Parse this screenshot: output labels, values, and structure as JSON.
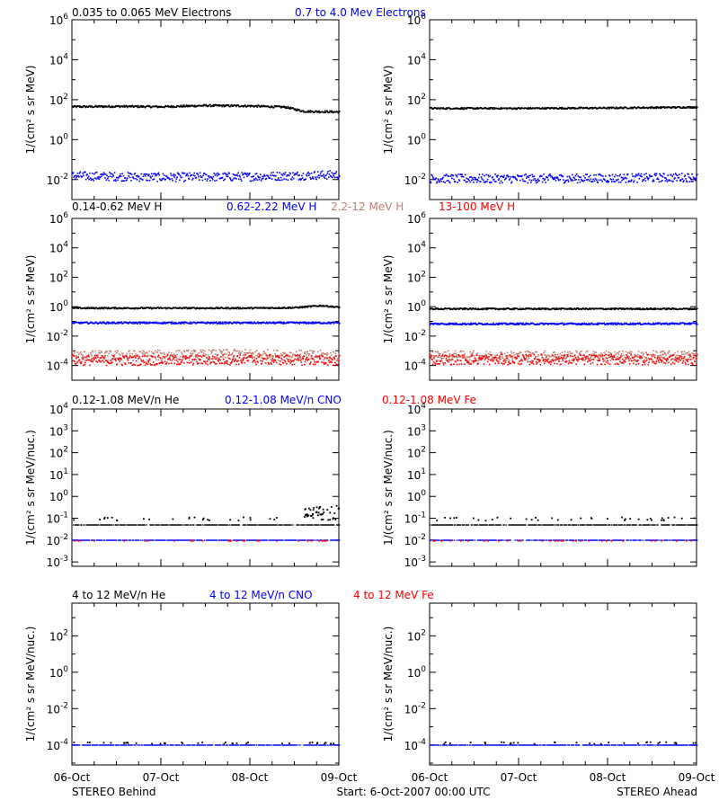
{
  "colors": {
    "black": "#000000",
    "blue": "#0000ff",
    "tan": "#c08070",
    "red": "#ff0000"
  },
  "footer": {
    "left": "STEREO Behind",
    "center": "Start:  6-Oct-2007 00:00 UTC",
    "right": "STEREO Ahead"
  },
  "x_ticks": [
    "06-Oct",
    "07-Oct",
    "08-Oct",
    "09-Oct"
  ],
  "chart_data": [
    {
      "type": "scatter",
      "row": "electrons",
      "ylabel": "1/(cm² s sr MeV)",
      "ylog10_range": [
        -3,
        6
      ],
      "ytick_exponents": [
        -2,
        0,
        2,
        4,
        6
      ],
      "legend": [
        {
          "label": "0.035 to 0.065 MeV Electrons",
          "color": "black"
        },
        {
          "label": "0.7 to 4.0 Mev Electrons",
          "color": "blue"
        }
      ],
      "x_days": [
        0,
        3
      ],
      "panels": [
        {
          "spacecraft": "STEREO Behind",
          "series": [
            {
              "name": "0.035 to 0.065 MeV Electrons",
              "color": "black",
              "style": "band",
              "points": [
                [
                  0,
                  1.68
                ],
                [
                  0.5,
                  1.7
                ],
                [
                  1.0,
                  1.68
                ],
                [
                  1.5,
                  1.74
                ],
                [
                  2.0,
                  1.72
                ],
                [
                  2.4,
                  1.66
                ],
                [
                  2.6,
                  1.45
                ],
                [
                  3.0,
                  1.42
                ]
              ],
              "spread": 0.05
            },
            {
              "name": "0.7 to 4.0 Mev Electrons",
              "color": "blue",
              "style": "band",
              "points": [
                [
                  0,
                  -1.78
                ],
                [
                  1.0,
                  -1.85
                ],
                [
                  2.0,
                  -1.82
                ],
                [
                  3.0,
                  -1.72
                ]
              ],
              "spread": 0.22
            }
          ]
        },
        {
          "spacecraft": "STEREO Ahead",
          "series": [
            {
              "name": "0.035 to 0.065 MeV Electrons",
              "color": "black",
              "style": "band",
              "points": [
                [
                  0,
                  1.6
                ],
                [
                  1.0,
                  1.6
                ],
                [
                  2.0,
                  1.62
                ],
                [
                  3.0,
                  1.66
                ]
              ],
              "spread": 0.04
            },
            {
              "name": "0.7 to 4.0 Mev Electrons",
              "color": "blue",
              "style": "band",
              "points": [
                [
                  0,
                  -1.92
                ],
                [
                  1.0,
                  -1.92
                ],
                [
                  2.0,
                  -1.9
                ],
                [
                  3.0,
                  -1.85
                ]
              ],
              "spread": 0.22
            }
          ]
        }
      ]
    },
    {
      "type": "scatter",
      "row": "protons",
      "ylabel": "1/(cm² s sr MeV)",
      "ylog10_range": [
        -5,
        6
      ],
      "ytick_exponents": [
        -4,
        -2,
        0,
        2,
        4,
        6
      ],
      "legend": [
        {
          "label": "0.14-0.62 MeV H",
          "color": "black"
        },
        {
          "label": "0.62-2.22 MeV H",
          "color": "blue"
        },
        {
          "label": "2.2-12 MeV H",
          "color": "tan"
        },
        {
          "label": "13-100 MeV H",
          "color": "red"
        }
      ],
      "x_days": [
        0,
        3
      ],
      "panels": [
        {
          "spacecraft": "STEREO Behind",
          "series": [
            {
              "name": "0.14-0.62 MeV H",
              "color": "black",
              "style": "band",
              "points": [
                [
                  0,
                  -0.05
                ],
                [
                  1.0,
                  -0.05
                ],
                [
                  2.0,
                  -0.05
                ],
                [
                  2.5,
                  -0.02
                ],
                [
                  2.8,
                  0.12
                ],
                [
                  3.0,
                  0.0
                ]
              ],
              "spread": 0.05
            },
            {
              "name": "0.62-2.22 MeV H",
              "color": "blue",
              "style": "band",
              "points": [
                [
                  0,
                  -1.05
                ],
                [
                  1.0,
                  -1.05
                ],
                [
                  2.0,
                  -1.05
                ],
                [
                  3.0,
                  -1.05
                ]
              ],
              "spread": 0.06
            },
            {
              "name": "2.2-12 MeV H",
              "color": "tan",
              "style": "band",
              "points": [
                [
                  0,
                  -3.3
                ],
                [
                  1.0,
                  -3.25
                ],
                [
                  2.0,
                  -3.2
                ],
                [
                  3.0,
                  -3.3
                ]
              ],
              "spread": 0.35
            },
            {
              "name": "13-100 MeV H",
              "color": "red",
              "style": "band",
              "points": [
                [
                  0,
                  -3.6
                ],
                [
                  1.0,
                  -3.6
                ],
                [
                  2.0,
                  -3.55
                ],
                [
                  3.0,
                  -3.6
                ]
              ],
              "spread": 0.35
            }
          ]
        },
        {
          "spacecraft": "STEREO Ahead",
          "series": [
            {
              "name": "0.14-0.62 MeV H",
              "color": "black",
              "style": "band",
              "points": [
                [
                  0,
                  -0.1
                ],
                [
                  1.0,
                  -0.1
                ],
                [
                  2.0,
                  -0.1
                ],
                [
                  3.0,
                  -0.1
                ]
              ],
              "spread": 0.05
            },
            {
              "name": "0.62-2.22 MeV H",
              "color": "blue",
              "style": "band",
              "points": [
                [
                  0,
                  -1.12
                ],
                [
                  1.0,
                  -1.12
                ],
                [
                  2.0,
                  -1.12
                ],
                [
                  3.0,
                  -1.1
                ]
              ],
              "spread": 0.06
            },
            {
              "name": "2.2-12 MeV H",
              "color": "tan",
              "style": "band",
              "points": [
                [
                  0,
                  -3.3
                ],
                [
                  1.0,
                  -3.3
                ],
                [
                  2.0,
                  -3.3
                ],
                [
                  3.0,
                  -3.3
                ]
              ],
              "spread": 0.35
            },
            {
              "name": "13-100 MeV H",
              "color": "red",
              "style": "band",
              "points": [
                [
                  0,
                  -3.55
                ],
                [
                  1.0,
                  -3.55
                ],
                [
                  2.0,
                  -3.55
                ],
                [
                  3.0,
                  -3.55
                ]
              ],
              "spread": 0.35
            }
          ]
        }
      ]
    },
    {
      "type": "scatter",
      "row": "low-energy-ions",
      "ylabel": "1/(cm² s sr MeV/nuc.)",
      "ylog10_range": [
        -3.2,
        4
      ],
      "ytick_exponents": [
        -3,
        -2,
        -1,
        0,
        1,
        2,
        3,
        4
      ],
      "legend": [
        {
          "label": "0.12-1.08 MeV/n He",
          "color": "black"
        },
        {
          "label": "0.12-1.08 MeV/n CNO",
          "color": "blue"
        },
        {
          "label": "0.12-1.08 MeV Fe",
          "color": "red"
        }
      ],
      "x_days": [
        0,
        3
      ],
      "panels": [
        {
          "spacecraft": "STEREO Behind",
          "series": [
            {
              "name": "0.12-1.08 MeV/n He",
              "color": "black",
              "style": "line",
              "points": [
                [
                  0,
                  -1.3
                ],
                [
                  3.0,
                  -1.3
                ]
              ],
              "spread": 0
            },
            {
              "name": "0.12-1.08 MeV/n He",
              "color": "black",
              "style": "sparse",
              "points": [
                [
                  0,
                  -1.0
                ],
                [
                  3.0,
                  -1.0
                ]
              ],
              "spread": 0.08
            },
            {
              "name": "0.12-1.08 MeV/n He",
              "color": "black",
              "style": "sparse",
              "points": [
                [
                  2.6,
                  -0.75
                ],
                [
                  2.8,
                  -0.6
                ],
                [
                  3.0,
                  -0.55
                ]
              ],
              "spread": 0.2
            },
            {
              "name": "0.12-1.08 MeV/n CNO",
              "color": "blue",
              "style": "line",
              "points": [
                [
                  0,
                  -2.0
                ],
                [
                  3.0,
                  -2.0
                ]
              ],
              "spread": 0
            },
            {
              "name": "0.12-1.08 MeV Fe",
              "color": "red",
              "style": "sparse",
              "points": [
                [
                  0,
                  -2.0
                ],
                [
                  3.0,
                  -2.0
                ]
              ],
              "spread": 0
            }
          ]
        },
        {
          "spacecraft": "STEREO Ahead",
          "series": [
            {
              "name": "0.12-1.08 MeV/n He",
              "color": "black",
              "style": "line",
              "points": [
                [
                  0,
                  -1.3
                ],
                [
                  3.0,
                  -1.3
                ]
              ],
              "spread": 0
            },
            {
              "name": "0.12-1.08 MeV/n He",
              "color": "black",
              "style": "sparse",
              "points": [
                [
                  0,
                  -1.0
                ],
                [
                  3.0,
                  -1.0
                ]
              ],
              "spread": 0.08
            },
            {
              "name": "0.12-1.08 MeV/n CNO",
              "color": "blue",
              "style": "line",
              "points": [
                [
                  0,
                  -2.0
                ],
                [
                  3.0,
                  -2.0
                ]
              ],
              "spread": 0
            },
            {
              "name": "0.12-1.08 MeV Fe",
              "color": "red",
              "style": "sparse",
              "points": [
                [
                  0,
                  -2.0
                ],
                [
                  3.0,
                  -2.0
                ]
              ],
              "spread": 0
            }
          ]
        }
      ]
    },
    {
      "type": "scatter",
      "row": "high-energy-ions",
      "ylabel": "1/(cm² s sr MeV/nuc.)",
      "ylog10_range": [
        -5.1,
        3.8
      ],
      "ytick_exponents": [
        -4,
        -2,
        0,
        2
      ],
      "legend": [
        {
          "label": "4 to 12 MeV/n He",
          "color": "black"
        },
        {
          "label": "4 to 12 MeV/n CNO",
          "color": "blue"
        },
        {
          "label": "4 to 12 MeV Fe",
          "color": "red"
        }
      ],
      "x_days": [
        0,
        3
      ],
      "panels": [
        {
          "spacecraft": "STEREO Behind",
          "series": [
            {
              "name": "4 to 12 MeV/n CNO",
              "color": "blue",
              "style": "line",
              "points": [
                [
                  0,
                  -4.0
                ],
                [
                  3.0,
                  -4.0
                ]
              ],
              "spread": 0
            },
            {
              "name": "4 to 12 MeV/n He",
              "color": "black",
              "style": "sparse",
              "points": [
                [
                  0,
                  -3.85
                ],
                [
                  3.0,
                  -3.85
                ]
              ],
              "spread": 0.05
            }
          ]
        },
        {
          "spacecraft": "STEREO Ahead",
          "series": [
            {
              "name": "4 to 12 MeV/n CNO",
              "color": "blue",
              "style": "line",
              "points": [
                [
                  0,
                  -4.0
                ],
                [
                  3.0,
                  -4.0
                ]
              ],
              "spread": 0
            },
            {
              "name": "4 to 12 MeV/n He",
              "color": "black",
              "style": "sparse",
              "points": [
                [
                  0,
                  -3.85
                ],
                [
                  3.0,
                  -3.85
                ]
              ],
              "spread": 0.05
            }
          ]
        }
      ]
    }
  ]
}
